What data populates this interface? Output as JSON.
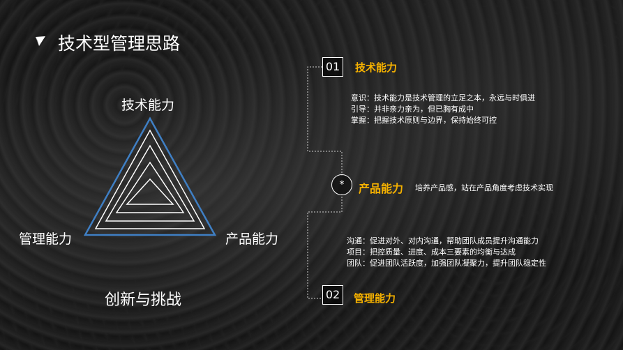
{
  "slide": {
    "title": "技术型管理思路",
    "triangle": {
      "top_label": "技术能力",
      "left_label": "管理能力",
      "right_label": "产品能力",
      "outline_color": "#3f7fc4"
    },
    "subtitle": "创新与挑战",
    "section1": {
      "number": "01",
      "heading": "技术能力",
      "lines": [
        "意识：技术能力是技术管理的立足之本，永远与时俱进",
        "引导：并非亲力亲为，但已胸有成中",
        "掌握：把握技术原则与边界，保持始终可控"
      ]
    },
    "section2": {
      "symbol": "*",
      "heading": "产品能力",
      "description": "培养产品感，站在产品角度考虑技术实现"
    },
    "section3": {
      "number": "02",
      "heading": "管理能力",
      "lines": [
        "沟通：促进对外、对内沟通，帮助团队成员提升沟通能力",
        "项目：把控质量、进度、成本三要素的均衡与达成",
        "团队：促进团队活跃度，加强团队凝聚力，提升团队稳定性"
      ]
    },
    "accent_color": "#f5b100"
  }
}
